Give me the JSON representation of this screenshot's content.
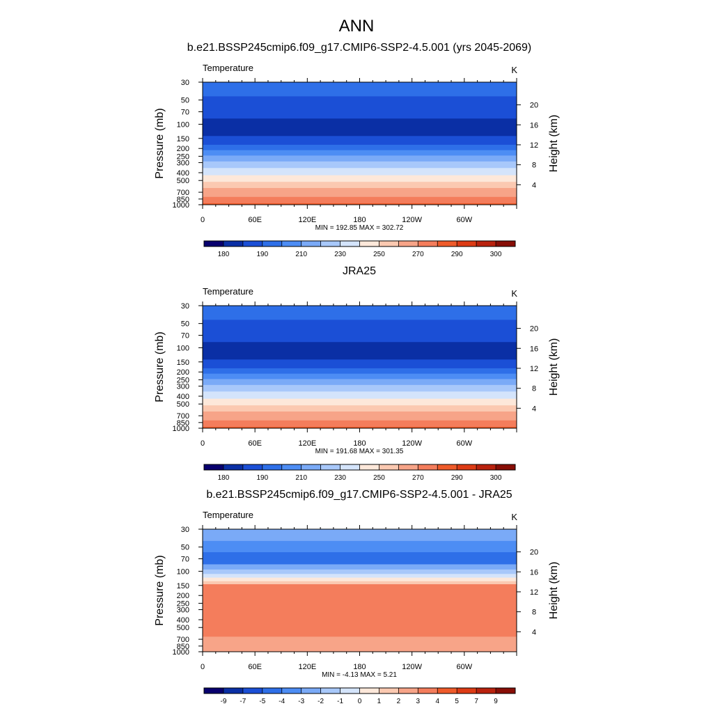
{
  "page_title": "ANN",
  "chart_data": [
    {
      "type": "heatmap",
      "title": "b.e21.BSSP245cmip6.f09_g17.CMIP6-SSP2-4.5.001 (yrs 2045-2069)",
      "left_label": "Temperature",
      "units": "K",
      "ylabel": "Pressure (mb)",
      "right_ylabel": "Height (km)",
      "x_ticks": [
        {
          "label": "0",
          "lon": 0
        },
        {
          "label": "60E",
          "lon": 60
        },
        {
          "label": "120E",
          "lon": 120
        },
        {
          "label": "180",
          "lon": 180
        },
        {
          "label": "120W",
          "lon": 240
        },
        {
          "label": "60W",
          "lon": 300
        }
      ],
      "xlim": [
        0,
        360
      ],
      "pressure_ticks": [
        30,
        50,
        70,
        100,
        150,
        200,
        250,
        300,
        400,
        500,
        700,
        850,
        1000
      ],
      "height_ticks": [
        4,
        8,
        12,
        16,
        20
      ],
      "ylim_mb": [
        30,
        1000
      ],
      "stats": "MIN = 192.85  MAX = 302.72",
      "profile": [
        {
          "p": 30,
          "level": 3
        },
        {
          "p": 45,
          "level": 2
        },
        {
          "p": 85,
          "level": 1
        },
        {
          "p": 140,
          "level": 2
        },
        {
          "p": 180,
          "level": 3
        },
        {
          "p": 210,
          "level": 4
        },
        {
          "p": 245,
          "level": 5
        },
        {
          "p": 290,
          "level": 6
        },
        {
          "p": 350,
          "level": 7
        },
        {
          "p": 430,
          "level": 8
        },
        {
          "p": 520,
          "level": 9
        },
        {
          "p": 620,
          "level": 10
        },
        {
          "p": 800,
          "level": 11
        },
        {
          "p": 960,
          "level": 12
        },
        {
          "p": 1000,
          "level": 12
        }
      ],
      "colorbar": {
        "colors": [
          "#08006e",
          "#0a2fa5",
          "#1b4fd6",
          "#2e6fe8",
          "#4d8df4",
          "#7aaaf7",
          "#a8c8fa",
          "#d4e4fb",
          "#fde8da",
          "#fbc9b1",
          "#f7a488",
          "#f47d5c",
          "#ef5b2a",
          "#dd3b15",
          "#b9220e",
          "#880e06"
        ],
        "labels": [
          "180",
          "190",
          "210",
          "230",
          "250",
          "270",
          "290",
          "300"
        ]
      }
    },
    {
      "type": "heatmap",
      "title": "JRA25",
      "left_label": "Temperature",
      "units": "K",
      "ylabel": "Pressure (mb)",
      "right_ylabel": "Height (km)",
      "x_ticks": [
        {
          "label": "0",
          "lon": 0
        },
        {
          "label": "60E",
          "lon": 60
        },
        {
          "label": "120E",
          "lon": 120
        },
        {
          "label": "180",
          "lon": 180
        },
        {
          "label": "120W",
          "lon": 240
        },
        {
          "label": "60W",
          "lon": 300
        }
      ],
      "xlim": [
        0,
        360
      ],
      "pressure_ticks": [
        30,
        50,
        70,
        100,
        150,
        200,
        250,
        300,
        400,
        500,
        700,
        850,
        1000
      ],
      "height_ticks": [
        4,
        8,
        12,
        16,
        20
      ],
      "ylim_mb": [
        30,
        1000
      ],
      "stats": "MIN = 191.68  MAX = 301.35",
      "profile": [
        {
          "p": 30,
          "level": 3
        },
        {
          "p": 45,
          "level": 2
        },
        {
          "p": 85,
          "level": 1
        },
        {
          "p": 140,
          "level": 2
        },
        {
          "p": 180,
          "level": 3
        },
        {
          "p": 210,
          "level": 4
        },
        {
          "p": 245,
          "level": 5
        },
        {
          "p": 290,
          "level": 6
        },
        {
          "p": 350,
          "level": 7
        },
        {
          "p": 430,
          "level": 8
        },
        {
          "p": 520,
          "level": 9
        },
        {
          "p": 620,
          "level": 10
        },
        {
          "p": 800,
          "level": 11
        },
        {
          "p": 960,
          "level": 12
        },
        {
          "p": 1000,
          "level": 12
        }
      ],
      "colorbar": {
        "colors": [
          "#08006e",
          "#0a2fa5",
          "#1b4fd6",
          "#2e6fe8",
          "#4d8df4",
          "#7aaaf7",
          "#a8c8fa",
          "#d4e4fb",
          "#fde8da",
          "#fbc9b1",
          "#f7a488",
          "#f47d5c",
          "#ef5b2a",
          "#dd3b15",
          "#b9220e",
          "#880e06"
        ],
        "labels": [
          "180",
          "190",
          "210",
          "230",
          "250",
          "270",
          "290",
          "300"
        ]
      }
    },
    {
      "type": "heatmap",
      "title": "b.e21.BSSP245cmip6.f09_g17.CMIP6-SSP2-4.5.001 - JRA25",
      "left_label": "Temperature",
      "units": "K",
      "ylabel": "Pressure (mb)",
      "right_ylabel": "Height (km)",
      "x_ticks": [
        {
          "label": "0",
          "lon": 0
        },
        {
          "label": "60E",
          "lon": 60
        },
        {
          "label": "120E",
          "lon": 120
        },
        {
          "label": "180",
          "lon": 180
        },
        {
          "label": "120W",
          "lon": 240
        },
        {
          "label": "60W",
          "lon": 300
        }
      ],
      "xlim": [
        0,
        360
      ],
      "pressure_ticks": [
        30,
        50,
        70,
        100,
        150,
        200,
        250,
        300,
        400,
        500,
        700,
        850,
        1000
      ],
      "height_ticks": [
        4,
        8,
        12,
        16,
        20
      ],
      "ylim_mb": [
        30,
        1000
      ],
      "stats": "MIN =  -4.13  MAX =   5.21",
      "profile": [
        {
          "p": 30,
          "level": 5
        },
        {
          "p": 42,
          "level": 4
        },
        {
          "p": 58,
          "level": 3
        },
        {
          "p": 82,
          "level": 5
        },
        {
          "p": 95,
          "level": 6
        },
        {
          "p": 108,
          "level": 7
        },
        {
          "p": 120,
          "level": 8
        },
        {
          "p": 133,
          "level": 9
        },
        {
          "p": 145,
          "level": 11
        },
        {
          "p": 600,
          "level": 11
        },
        {
          "p": 650,
          "level": 10
        },
        {
          "p": 960,
          "level": 10
        },
        {
          "p": 1000,
          "level": 11
        }
      ],
      "colorbar": {
        "colors": [
          "#08006e",
          "#0a2fa5",
          "#1b4fd6",
          "#2e6fe8",
          "#4d8df4",
          "#7aaaf7",
          "#a8c8fa",
          "#d4e4fb",
          "#fde8da",
          "#fbc9b1",
          "#f7a488",
          "#f47d5c",
          "#ef5b2a",
          "#dd3b15",
          "#b9220e",
          "#880e06"
        ],
        "labels": [
          "-9",
          "-7",
          "-5",
          "-4",
          "-3",
          "-2",
          "-1",
          "0",
          "1",
          "2",
          "3",
          "4",
          "5",
          "7",
          "9"
        ]
      }
    }
  ]
}
